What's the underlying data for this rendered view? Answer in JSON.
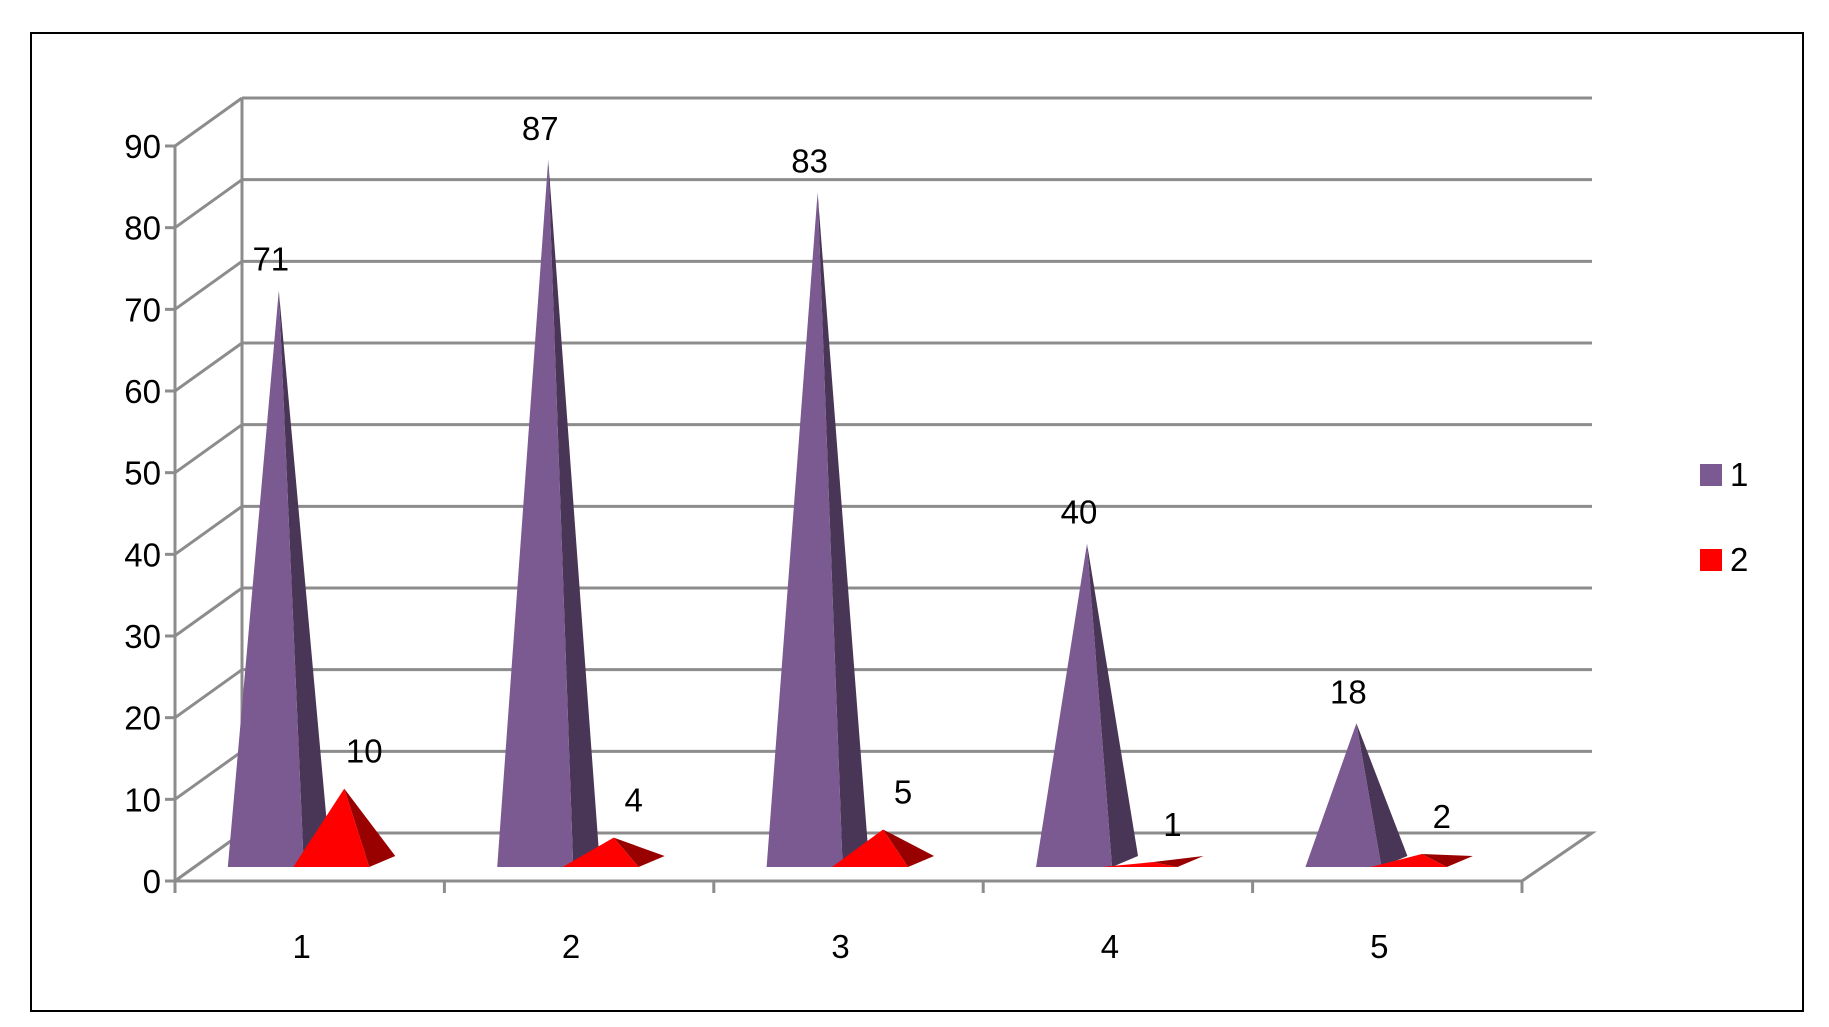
{
  "chart_data": {
    "type": "bar",
    "style": "3d-pyramid",
    "categories": [
      "1",
      "2",
      "3",
      "4",
      "5"
    ],
    "series": [
      {
        "name": "1",
        "color": "#7a5a90",
        "values": [
          71,
          87,
          83,
          40,
          18
        ]
      },
      {
        "name": "2",
        "color": "#ff0000",
        "values": [
          10,
          4,
          5,
          1,
          2
        ]
      }
    ],
    "ylim": [
      0,
      90
    ],
    "yticks": [
      "0",
      "10",
      "20",
      "30",
      "40",
      "50",
      "60",
      "70",
      "80",
      "90"
    ],
    "grid": true,
    "legend": "right",
    "data_labels": true
  }
}
